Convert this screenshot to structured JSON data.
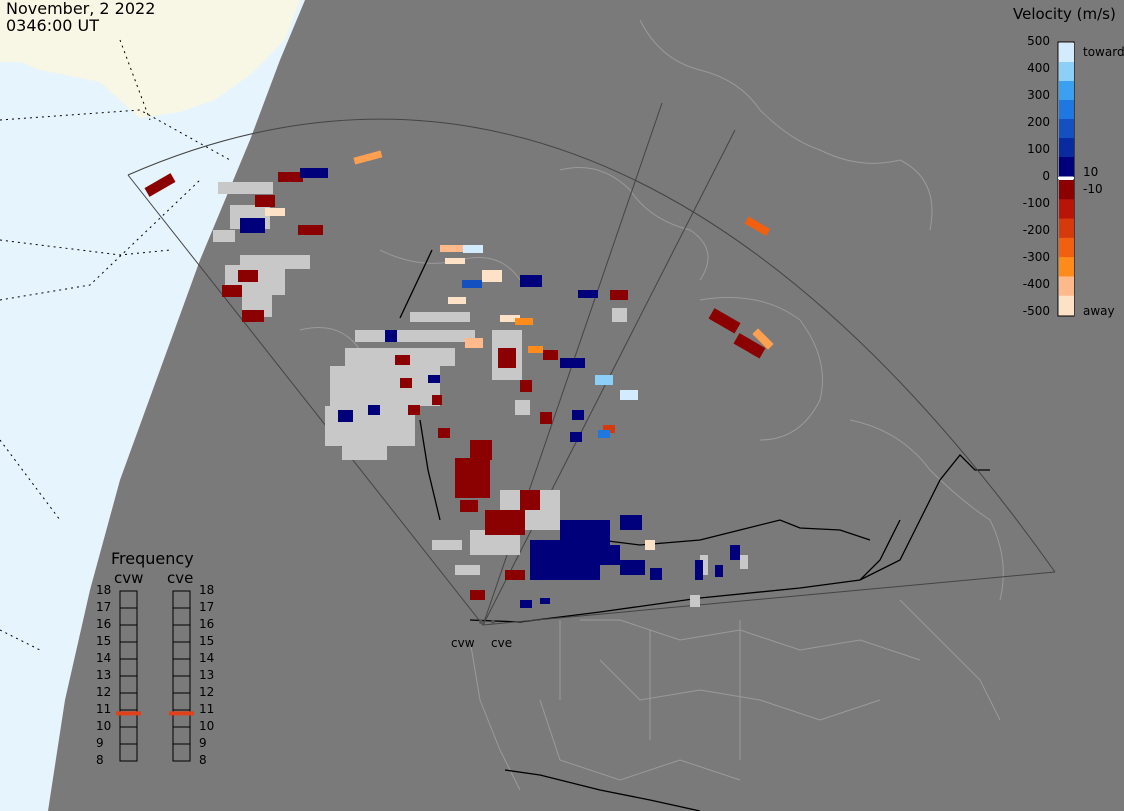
{
  "header": {
    "date": "November, 2 2022",
    "time": "0346:00 UT"
  },
  "colorbar": {
    "title": "Velocity (m/s)",
    "ticks": [
      "500",
      "400",
      "300",
      "200",
      "100",
      "0",
      "-100",
      "-200",
      "-300",
      "-400",
      "-500"
    ],
    "inner_labels": [
      "10",
      "-10"
    ],
    "end_labels": {
      "toward": "toward",
      "away": "away"
    },
    "colors": [
      "#fde2c8",
      "#ffb98a",
      "#ff8c1a",
      "#f06010",
      "#d43a0c",
      "#b81408",
      "#8b0000",
      "#9a9a9a",
      "#00007a",
      "#0a2aa0",
      "#1450c0",
      "#1e78e0",
      "#3ca0f0",
      "#8ccff7",
      "#d2ecfd"
    ]
  },
  "frequency": {
    "title": "Frequency",
    "radars": [
      "cvw",
      "cve"
    ],
    "scale": [
      "18",
      "17",
      "16",
      "15",
      "14",
      "13",
      "12",
      "11",
      "10",
      "9",
      "8"
    ],
    "cvw_mhz": 10.8,
    "cve_mhz": 10.8,
    "indicator_color": "#e0401a"
  },
  "sites": {
    "west": "cvw",
    "east": "cve"
  },
  "colors": {
    "ocean": "#e6f4fd",
    "land_day": "#f8f6e4",
    "night": "#7a7a7a",
    "ground_scatter": "#c8c8c8"
  }
}
